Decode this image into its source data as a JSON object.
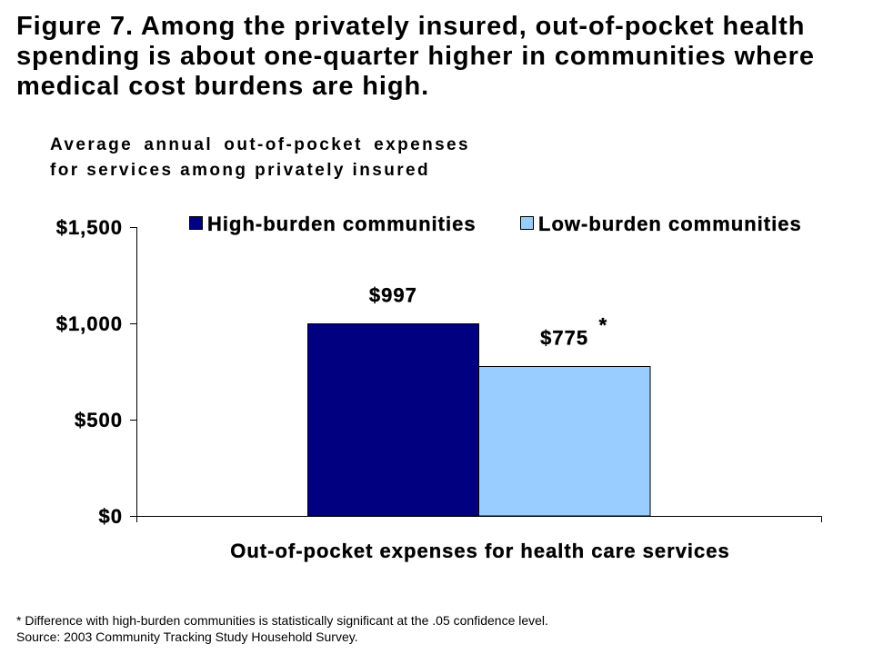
{
  "chart_data": {
    "type": "bar",
    "title": "Figure 7. Among the privately insured, out-of-pocket health spending is about one-quarter higher in communities where medical cost burdens are high.",
    "subtitle": "Average annual out-of-pocket expenses for services among privately insured",
    "xlabel": "Out-of-pocket expenses for health care services",
    "ylim": [
      0,
      1500
    ],
    "y_ticks": [
      {
        "value": 0,
        "label": "$0"
      },
      {
        "value": 500,
        "label": "$500"
      },
      {
        "value": 1000,
        "label": "$1,000"
      },
      {
        "value": 1500,
        "label": "$1,500"
      }
    ],
    "series": [
      {
        "name": "High-burden communities",
        "values": [
          997
        ],
        "data_labels": [
          "$997"
        ],
        "color": "#000080"
      },
      {
        "name": "Low-burden communities",
        "values": [
          775
        ],
        "data_labels": [
          "$775"
        ],
        "significance_markers": [
          "*"
        ],
        "color": "#99CCFF"
      }
    ],
    "legend": "top",
    "grid": false
  },
  "footnotes": {
    "significance": "* Difference with high-burden communities is statistically significant at the .05 confidence level.",
    "source": "Source: 2003 Community Tracking Study Household Survey."
  }
}
